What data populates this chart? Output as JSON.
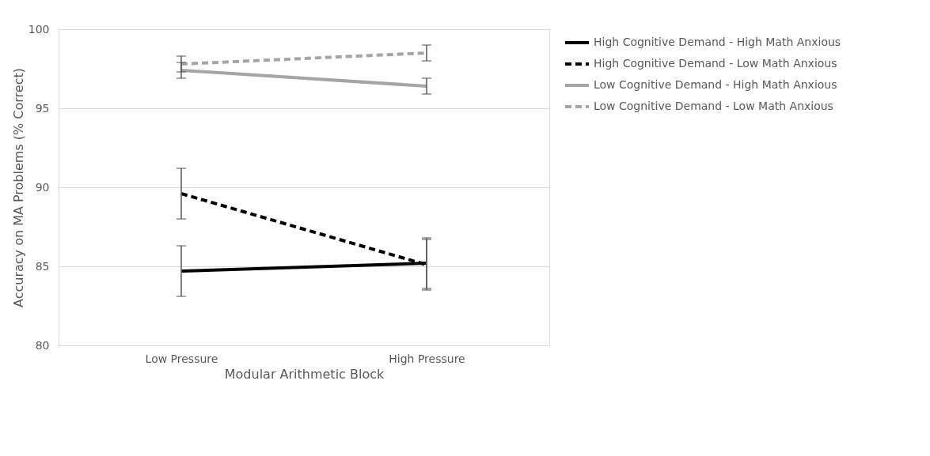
{
  "chart_data": {
    "type": "line",
    "xlabel": "Modular Arithmetic Block",
    "ylabel": "Accuracy on MA Problems (% Correct)",
    "categories": [
      "Low Pressure",
      "High Pressure"
    ],
    "ylim": [
      80,
      100
    ],
    "yticks": [
      80,
      85,
      90,
      95,
      100
    ],
    "grid": "y",
    "legend": "right",
    "marker": "none",
    "series": [
      {
        "name": "High Cognitive Demand - High Math Anxious",
        "color": "#000000",
        "line_style": "solid",
        "values": [
          84.7,
          85.2
        ],
        "errors": [
          1.6,
          1.6
        ]
      },
      {
        "name": "High Cognitive Demand - Low Math Anxious",
        "color": "#000000",
        "line_style": "dashed",
        "values": [
          89.6,
          85.1
        ],
        "errors": [
          1.6,
          1.6
        ]
      },
      {
        "name": "Low Cognitive Demand - High Math Anxious",
        "color": "#a5a5a5",
        "line_style": "solid",
        "values": [
          97.4,
          96.4
        ],
        "errors": [
          0.5,
          0.5
        ]
      },
      {
        "name": "Low Cognitive Demand - Low Math Anxious",
        "color": "#a5a5a5",
        "line_style": "dashed",
        "values": [
          97.8,
          98.5
        ],
        "errors": [
          0.5,
          0.5
        ]
      }
    ]
  }
}
